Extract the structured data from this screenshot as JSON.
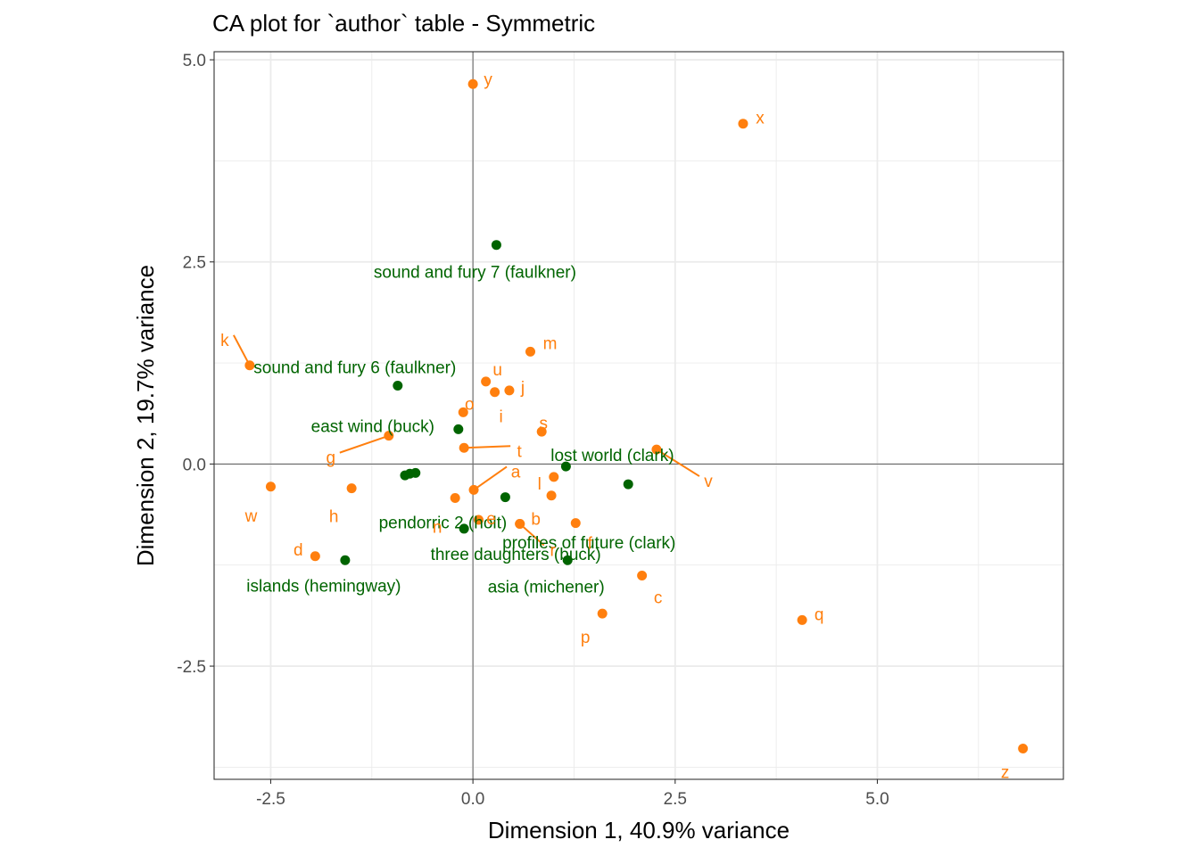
{
  "chart_data": {
    "type": "scatter",
    "title": "CA plot for `author` table - Symmetric",
    "xlabel": "Dimension 1, 40.9% variance",
    "ylabel": "Dimension 2, 19.7% variance",
    "xlim": [
      -3.2,
      7.3
    ],
    "ylim": [
      -3.9,
      5.1
    ],
    "xticks": [
      -2.5,
      0.0,
      2.5,
      5.0
    ],
    "xtick_labels": [
      "-2.5",
      "0.0",
      "2.5",
      "5.0"
    ],
    "yticks": [
      -2.5,
      0.0,
      2.5,
      5.0
    ],
    "ytick_labels": [
      "-2.5",
      "0.0",
      "2.5",
      "5.0"
    ],
    "grid": true,
    "reference_lines": {
      "x": 0,
      "y": 0
    },
    "series": [
      {
        "color": "#006400",
        "points": [
          {
            "label": "sound and fury 7 (faulkner)",
            "x": 0.29,
            "y": 2.71
          },
          {
            "label": "sound and fury 6 (faulkner)",
            "x": -0.93,
            "y": 0.97
          },
          {
            "label": "east wind (buck)",
            "x": -0.18,
            "y": 0.43
          },
          {
            "label": "pendorric 2 (holt)",
            "x": -0.78,
            "y": -0.12
          },
          {
            "label": "",
            "x": -0.71,
            "y": -0.11
          },
          {
            "label": "",
            "x": -0.84,
            "y": -0.14
          },
          {
            "label": "lost world (clark)",
            "x": 1.15,
            "y": -0.03
          },
          {
            "label": "profiles of future (clark)",
            "x": 1.92,
            "y": -0.25
          },
          {
            "label": "",
            "x": 0.4,
            "y": -0.41
          },
          {
            "label": "three daughters (buck)",
            "x": -0.11,
            "y": -0.8
          },
          {
            "label": "islands (hemingway)",
            "x": -1.58,
            "y": -1.19
          },
          {
            "label": "asia (michener)",
            "x": 1.17,
            "y": -1.19
          }
        ]
      },
      {
        "color": "#FF7F0E",
        "points": [
          {
            "label": "y",
            "x": 0.0,
            "y": 4.7
          },
          {
            "label": "x",
            "x": 3.34,
            "y": 4.21
          },
          {
            "label": "k",
            "x": -2.76,
            "y": 1.22
          },
          {
            "label": "m",
            "x": 0.71,
            "y": 1.39
          },
          {
            "label": "u",
            "x": 0.16,
            "y": 1.02
          },
          {
            "label": "j",
            "x": 0.45,
            "y": 0.91
          },
          {
            "label": "i",
            "x": 0.27,
            "y": 0.89
          },
          {
            "label": "o",
            "x": -0.12,
            "y": 0.64
          },
          {
            "label": "s",
            "x": 0.85,
            "y": 0.4
          },
          {
            "label": "g",
            "x": -1.04,
            "y": 0.35
          },
          {
            "label": "t",
            "x": -0.11,
            "y": 0.2
          },
          {
            "label": "v",
            "x": 2.27,
            "y": 0.18
          },
          {
            "label": "l",
            "x": 1.0,
            "y": -0.16
          },
          {
            "label": "a",
            "x": 0.01,
            "y": -0.32
          },
          {
            "label": "w",
            "x": -2.5,
            "y": -0.28
          },
          {
            "label": "h",
            "x": -1.5,
            "y": -0.3
          },
          {
            "label": "n",
            "x": -0.22,
            "y": -0.42
          },
          {
            "label": "",
            "x": 0.97,
            "y": -0.39
          },
          {
            "label": "e",
            "x": 0.07,
            "y": -0.69
          },
          {
            "label": "f",
            "x": 1.27,
            "y": -0.73
          },
          {
            "label": "b",
            "x": 0.58,
            "y": -0.74
          },
          {
            "label": "r",
            "x": 0.58,
            "y": -0.74
          },
          {
            "label": "d",
            "x": -1.95,
            "y": -1.14
          },
          {
            "label": "c",
            "x": 2.09,
            "y": -1.38
          },
          {
            "label": "p",
            "x": 1.6,
            "y": -1.85
          },
          {
            "label": "q",
            "x": 4.07,
            "y": -1.93
          },
          {
            "label": "z",
            "x": 6.8,
            "y": -3.52
          }
        ]
      }
    ]
  }
}
